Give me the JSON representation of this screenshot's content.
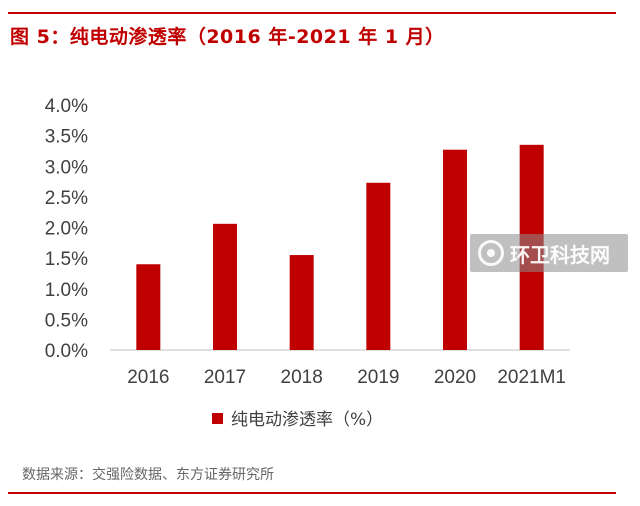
{
  "figure": {
    "title": "图 5：纯电动渗透率（2016 年-2021 年 1 月）",
    "source": "数据来源：交强险数据、东方证券研究所",
    "watermark": "环卫科技网",
    "accent_color": "#c00000"
  },
  "chart_data": {
    "type": "bar",
    "categories": [
      "2016",
      "2017",
      "2018",
      "2019",
      "2020",
      "2021M1"
    ],
    "series": [
      {
        "name": "纯电动渗透率（%）",
        "values": [
          1.4,
          2.06,
          1.55,
          2.73,
          3.27,
          3.35
        ],
        "color": "#c00000"
      }
    ],
    "ylim": [
      0,
      4
    ],
    "yticks": [
      "0.0%",
      "0.5%",
      "1.0%",
      "1.5%",
      "2.0%",
      "2.5%",
      "3.0%",
      "3.5%",
      "4.0%"
    ],
    "ytick_values": [
      0,
      0.5,
      1.0,
      1.5,
      2.0,
      2.5,
      3.0,
      3.5,
      4.0
    ],
    "grid": false,
    "legend_position": "bottom"
  }
}
